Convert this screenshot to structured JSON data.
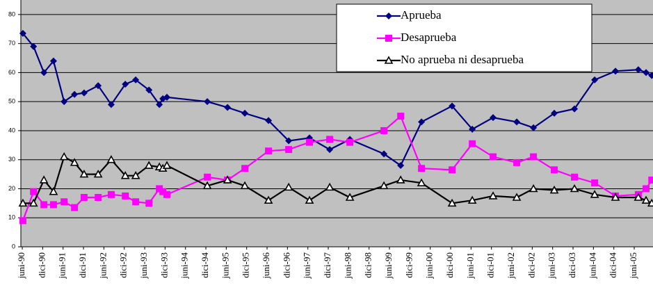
{
  "chart_data": {
    "type": "line",
    "x": [
      0.03,
      0.55,
      1.06,
      1.53,
      2.05,
      2.56,
      3.03,
      3.72,
      4.36,
      5.05,
      5.56,
      6.21,
      6.72,
      6.89,
      7.09,
      9.07,
      10.06,
      10.91,
      12.07,
      13.06,
      14.08,
      15.07,
      16.06,
      17.73,
      18.55,
      19.57,
      21.07,
      22.06,
      23.08,
      24.24,
      25.06,
      26.08,
      27.07,
      28.06,
      29.08,
      30.2,
      30.58,
      30.86
    ],
    "series": [
      {
        "name": "Aprueba",
        "color": "#000080",
        "marker": "diamond",
        "values": [
          73.5,
          69,
          60,
          64,
          50,
          52.5,
          53,
          55.5,
          49,
          56,
          57.5,
          54,
          49,
          51,
          51.5,
          50,
          48,
          46,
          43.5,
          36.5,
          37.5,
          33.5,
          37,
          32,
          28,
          43,
          48.5,
          40.5,
          44.5,
          43,
          41,
          46,
          47.5,
          57.5,
          60.5,
          61,
          60,
          59
        ]
      },
      {
        "name": "Desaprueba",
        "color": "#ff00ff",
        "marker": "square",
        "values": [
          9,
          19,
          14.5,
          14.5,
          15.5,
          13.5,
          17,
          17,
          18,
          17.5,
          15.5,
          15,
          20,
          19,
          18,
          24,
          23,
          27,
          33,
          33.5,
          36,
          37,
          36,
          40,
          45,
          27,
          26.5,
          35.5,
          31,
          29,
          31,
          26.5,
          24,
          22,
          17.5,
          18,
          20,
          23
        ]
      },
      {
        "name": "No aprueba ni desaprueba",
        "color": "#000000",
        "marker": "triangle",
        "values": [
          15,
          15,
          23,
          19,
          31,
          29,
          25,
          25,
          30,
          24.5,
          24.5,
          28,
          27.5,
          27,
          28,
          21,
          23,
          21,
          16,
          20.5,
          16,
          20.5,
          17,
          21,
          23,
          22,
          15,
          16,
          17.5,
          17,
          20,
          19.5,
          20,
          18,
          17,
          17,
          16,
          15
        ]
      }
    ],
    "xlim": [
      -0.07,
      30.92
    ],
    "xticks": [
      {
        "value": 0,
        "label": "juni-90"
      },
      {
        "value": 1,
        "label": "dici-90"
      },
      {
        "value": 2,
        "label": "juni-91"
      },
      {
        "value": 3,
        "label": "dici-91"
      },
      {
        "value": 4,
        "label": "juni-92"
      },
      {
        "value": 5,
        "label": "dici-92"
      },
      {
        "value": 6,
        "label": "juni-93"
      },
      {
        "value": 7,
        "label": "dici-93"
      },
      {
        "value": 8,
        "label": "juni-94"
      },
      {
        "value": 9,
        "label": "dici-94"
      },
      {
        "value": 10,
        "label": "juni-95"
      },
      {
        "value": 11,
        "label": "dici-95"
      },
      {
        "value": 12,
        "label": "juni-96"
      },
      {
        "value": 13,
        "label": "dici-96"
      },
      {
        "value": 14,
        "label": "juni-97"
      },
      {
        "value": 15,
        "label": "dici-97"
      },
      {
        "value": 16,
        "label": "juni-98"
      },
      {
        "value": 17,
        "label": "dici-98"
      },
      {
        "value": 18,
        "label": "juni-99"
      },
      {
        "value": 19,
        "label": "dici-99"
      },
      {
        "value": 20,
        "label": "juni-00"
      },
      {
        "value": 21,
        "label": "dici-00"
      },
      {
        "value": 22,
        "label": "juni-01"
      },
      {
        "value": 23,
        "label": "dici-01"
      },
      {
        "value": 24,
        "label": "juni-02"
      },
      {
        "value": 25,
        "label": "dici-02"
      },
      {
        "value": 26,
        "label": "juni-03"
      },
      {
        "value": 27,
        "label": "dici-03"
      },
      {
        "value": 28,
        "label": "juni-04"
      },
      {
        "value": 29,
        "label": "dici-04"
      },
      {
        "value": 30,
        "label": "juni-05"
      }
    ],
    "ylim": [
      0,
      85
    ],
    "yticks": [
      0,
      10,
      20,
      30,
      40,
      50,
      60,
      70,
      80
    ],
    "grid": true,
    "legend": "top-right"
  }
}
